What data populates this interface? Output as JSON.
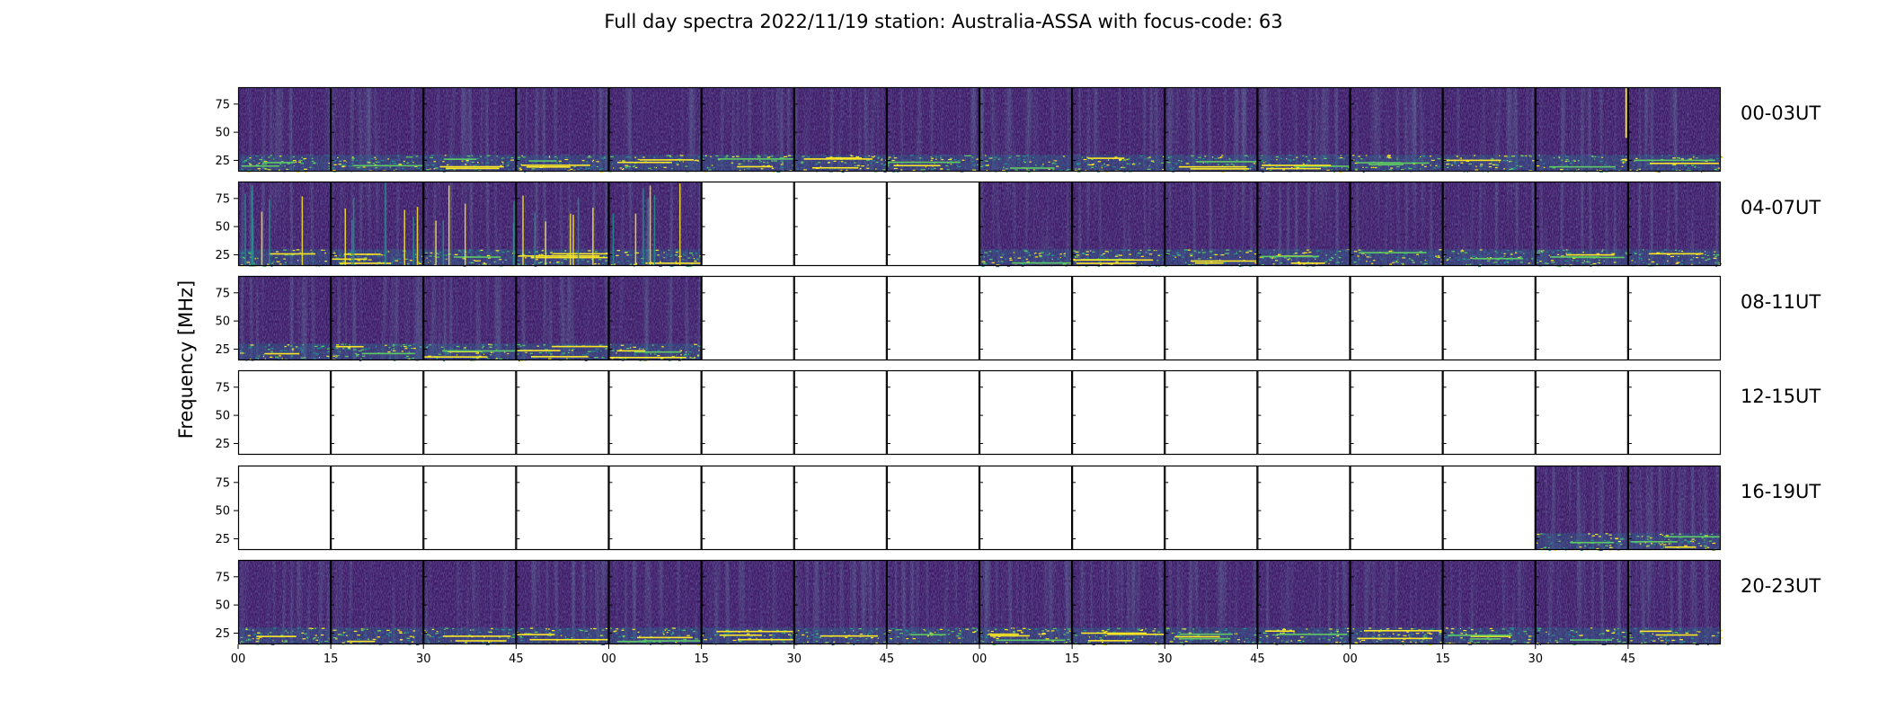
{
  "chart_data": {
    "type": "heatmap",
    "title": "Full day spectra 2022/11/19 station: Australia-ASSA with focus-code: 63",
    "ylabel": "Frequency [MHz]",
    "xlabel": "",
    "y_ticks": [
      "75",
      "50",
      "25"
    ],
    "x_ticks": [
      "00",
      "15",
      "30",
      "45",
      "00",
      "15",
      "30",
      "45",
      "00",
      "15",
      "30",
      "45",
      "00",
      "15",
      "30",
      "45"
    ],
    "panels_per_row": 16,
    "panel_minutes": 15,
    "colormap": "viridis",
    "rows": [
      {
        "label": "00-03UT",
        "data_present": [
          1,
          1,
          1,
          1,
          1,
          1,
          1,
          1,
          1,
          1,
          1,
          1,
          1,
          1,
          1,
          1
        ]
      },
      {
        "label": "04-07UT",
        "data_present": [
          1,
          1,
          1,
          1,
          1,
          0,
          0,
          0,
          1,
          1,
          1,
          1,
          1,
          1,
          1,
          1
        ]
      },
      {
        "label": "08-11UT",
        "data_present": [
          1,
          1,
          1,
          1,
          1,
          0,
          0,
          0,
          0,
          0,
          0,
          0,
          0,
          0,
          0,
          0
        ]
      },
      {
        "label": "12-15UT",
        "data_present": [
          0,
          0,
          0,
          0,
          0,
          0,
          0,
          0,
          0,
          0,
          0,
          0,
          0,
          0,
          0,
          0
        ]
      },
      {
        "label": "16-19UT",
        "data_present": [
          0,
          0,
          0,
          0,
          0,
          0,
          0,
          0,
          0,
          0,
          0,
          0,
          0,
          0,
          1,
          1
        ]
      },
      {
        "label": "20-23UT",
        "data_present": [
          1,
          1,
          1,
          1,
          1,
          1,
          1,
          1,
          1,
          1,
          1,
          1,
          1,
          1,
          1,
          1
        ]
      }
    ]
  }
}
